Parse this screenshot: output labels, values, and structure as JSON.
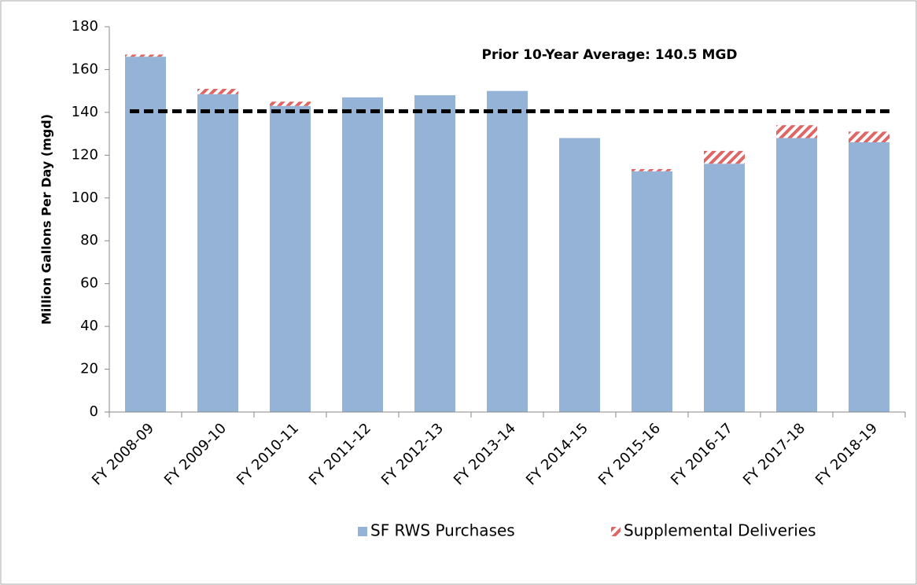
{
  "chart_data": {
    "type": "stacked_bar",
    "y_label": "Million Gallons Per Day (mgd)",
    "annotation": "Prior 10-Year Average: 140.5 MGD",
    "average_line": 140.5,
    "categories": [
      "FY 2008-09",
      "FY 2009-10",
      "FY 2010-11",
      "FY 2011-12",
      "FY 2012-13",
      "FY 2013-14",
      "FY 2014-15",
      "FY 2015-16",
      "FY 2016-17",
      "FY 2017-18",
      "FY 2018-19"
    ],
    "series": [
      {
        "name": "SF RWS Purchases",
        "color": "#95b3d7",
        "values": [
          166,
          148.5,
          143,
          147,
          148,
          150,
          128,
          112.5,
          116,
          128,
          126
        ]
      },
      {
        "name": "Supplemental Deliveries",
        "color": "#e06666",
        "values": [
          1,
          2.5,
          2,
          0,
          0,
          0,
          0,
          1,
          6,
          6,
          5
        ]
      }
    ],
    "ylim": [
      0,
      180
    ],
    "yticks": [
      0,
      20,
      40,
      60,
      80,
      100,
      120,
      140,
      160,
      180
    ]
  }
}
